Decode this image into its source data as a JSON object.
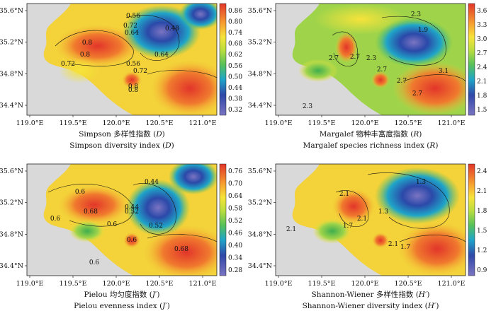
{
  "maps": [
    {
      "id": "simpson",
      "caption_cn_prefix": "Simpson 多样性指数 (",
      "caption_cn_sym": "D",
      "caption_cn_suffix": ")",
      "caption_en_prefix": "Simpson diversity index (",
      "caption_en_sym": "D",
      "caption_en_suffix": ")",
      "colorbar_ticks": [
        "0.86",
        "0.80",
        "0.74",
        "0.68",
        "0.62",
        "0.56",
        "0.50",
        "0.44",
        "0.38",
        "0.32"
      ],
      "contour_labels": [
        "0.56",
        "0.48",
        "0.72",
        "0.64",
        "0.8",
        "0.8",
        "0.72",
        "0.56",
        "0.64",
        "0.72",
        "0.8",
        "0.8"
      ]
    },
    {
      "id": "margalef",
      "caption_cn_prefix": "Margalef 物种丰富度指数 (",
      "caption_cn_sym": "R",
      "caption_cn_suffix": ")",
      "caption_en_prefix": "Margalef species richness index (",
      "caption_en_sym": "R",
      "caption_en_suffix": ")",
      "colorbar_ticks": [
        "3.6",
        "3.3",
        "3.0",
        "2.7",
        "2.4",
        "2.1",
        "1.8",
        "1.5"
      ],
      "contour_labels": [
        "2.3",
        "1.9",
        "2.7",
        "2.7",
        "2.7",
        "2.3",
        "2.7",
        "3.1",
        "2.3",
        "2.7"
      ]
    },
    {
      "id": "pielou",
      "caption_cn_prefix": "Pielou 均匀度指数 (",
      "caption_cn_sym": "J′",
      "caption_cn_suffix": ")",
      "caption_en_prefix": "Pielou evenness index (",
      "caption_en_sym": "J′",
      "caption_en_suffix": ")",
      "colorbar_ticks": [
        "0.76",
        "0.70",
        "0.64",
        "0.58",
        "0.52",
        "0.46",
        "0.40",
        "0.34",
        "0.28"
      ],
      "contour_labels": [
        "0.44",
        "0.52",
        "0.6",
        "0.68",
        "0.6",
        "0.6",
        "0.44",
        "0.52",
        "0.6",
        "0.68",
        "0.6"
      ]
    },
    {
      "id": "shannon",
      "caption_cn_prefix": "Shannon-Wiener 多样性指数 (",
      "caption_cn_sym": "H′",
      "caption_cn_suffix": ")",
      "caption_en_prefix": "Shannon-Wiener diversity index (",
      "caption_en_sym": "H′",
      "caption_en_suffix": ")",
      "colorbar_ticks": [
        "2.4",
        "2.1",
        "1.8",
        "1.5",
        "1.2",
        "0.9"
      ],
      "contour_labels": [
        "1.3",
        "1.7",
        "2.1",
        "2.1",
        "1.3",
        "1.7",
        "2.1",
        "2.1"
      ]
    }
  ],
  "axes": {
    "x_ticks": [
      "119.0°E",
      "119.5°E",
      "120.0°E",
      "120.5°E",
      "121.0°E"
    ],
    "y_ticks": [
      "35.6°N",
      "35.2°N",
      "34.8°N",
      "34.4°N"
    ]
  },
  "colors": {
    "land": "#d9d9d9",
    "low": "#3a4fb0",
    "mid": "#55c05a",
    "high": "#e8402a"
  }
}
